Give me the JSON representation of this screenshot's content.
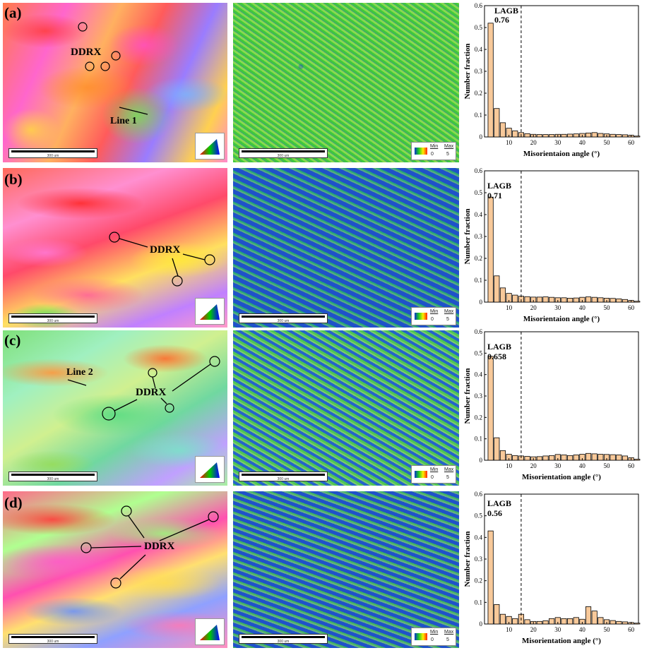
{
  "panels": [
    {
      "label": "(a)",
      "ipf_annotations": [
        "DDRX",
        "Line 1"
      ],
      "lagb_label": "LAGB",
      "lagb_value": "0.76",
      "xlabel": "Misorientaion angle (°)"
    },
    {
      "label": "(b)",
      "ipf_annotations": [
        "DDRX"
      ],
      "lagb_label": "LAGB",
      "lagb_value": "0.71",
      "xlabel": "Misorientaion angle (°)"
    },
    {
      "label": "(c)",
      "ipf_annotations": [
        "DDRX",
        "Line 2"
      ],
      "lagb_label": "LAGB",
      "lagb_value": "0.658",
      "xlabel": "Misorientation angle (°)"
    },
    {
      "label": "(d)",
      "ipf_annotations": [
        "DDRX"
      ],
      "lagb_label": "LAGB",
      "lagb_value": "0.56",
      "xlabel": "Misorientation angle (°)"
    }
  ],
  "scale_bar_text": "300 um",
  "kam_legend": {
    "min_label": "Min",
    "max_label": "Max",
    "min_value": "0",
    "max_value": "5"
  },
  "chart_data": [
    {
      "type": "bar",
      "ylabel": "Number fraction",
      "xlabel": "Misorientaion angle (°)",
      "ylim": [
        0,
        0.6
      ],
      "xlim": [
        0,
        63
      ],
      "xticks": [
        10,
        20,
        30,
        40,
        50,
        60
      ],
      "yticks": [
        0,
        0.1,
        0.2,
        0.3,
        0.4,
        0.5,
        0.6
      ],
      "threshold_line": 15,
      "x": [
        2.5,
        5,
        7.5,
        10,
        12.5,
        15,
        17.5,
        20,
        22.5,
        25,
        27.5,
        30,
        32.5,
        35,
        37.5,
        40,
        42.5,
        45,
        47.5,
        50,
        52.5,
        55,
        57.5,
        60,
        62.5
      ],
      "values": [
        0.52,
        0.13,
        0.065,
        0.04,
        0.028,
        0.02,
        0.015,
        0.012,
        0.011,
        0.011,
        0.011,
        0.012,
        0.012,
        0.013,
        0.014,
        0.016,
        0.018,
        0.02,
        0.016,
        0.014,
        0.012,
        0.011,
        0.01,
        0.008,
        0.004
      ]
    },
    {
      "type": "bar",
      "ylabel": "Number fraction",
      "xlabel": "Misorientaion angle (°)",
      "ylim": [
        0,
        0.6
      ],
      "xlim": [
        0,
        63
      ],
      "xticks": [
        10,
        20,
        30,
        40,
        50,
        60
      ],
      "yticks": [
        0,
        0.1,
        0.2,
        0.3,
        0.4,
        0.5,
        0.6
      ],
      "threshold_line": 15,
      "x": [
        2.5,
        5,
        7.5,
        10,
        12.5,
        15,
        17.5,
        20,
        22.5,
        25,
        27.5,
        30,
        32.5,
        35,
        37.5,
        40,
        42.5,
        45,
        47.5,
        50,
        52.5,
        55,
        57.5,
        60,
        62.5
      ],
      "values": [
        0.48,
        0.12,
        0.065,
        0.04,
        0.032,
        0.027,
        0.025,
        0.023,
        0.023,
        0.024,
        0.022,
        0.02,
        0.02,
        0.018,
        0.019,
        0.022,
        0.024,
        0.022,
        0.02,
        0.018,
        0.017,
        0.015,
        0.012,
        0.008,
        0.004
      ]
    },
    {
      "type": "bar",
      "ylabel": "Number fraction",
      "xlabel": "Misorientation angle (°)",
      "ylim": [
        0,
        0.6
      ],
      "xlim": [
        0,
        63
      ],
      "xticks": [
        10,
        20,
        30,
        40,
        50,
        60
      ],
      "yticks": [
        0,
        0.1,
        0.2,
        0.3,
        0.4,
        0.5,
        0.6
      ],
      "threshold_line": 15,
      "x": [
        2.5,
        5,
        7.5,
        10,
        12.5,
        15,
        17.5,
        20,
        22.5,
        25,
        27.5,
        30,
        32.5,
        35,
        37.5,
        40,
        42.5,
        45,
        47.5,
        50,
        52.5,
        55,
        57.5,
        60,
        62.5
      ],
      "values": [
        0.485,
        0.105,
        0.045,
        0.028,
        0.022,
        0.02,
        0.018,
        0.016,
        0.017,
        0.02,
        0.022,
        0.027,
        0.025,
        0.022,
        0.025,
        0.028,
        0.032,
        0.03,
        0.028,
        0.027,
        0.026,
        0.025,
        0.02,
        0.012,
        0.005
      ]
    },
    {
      "type": "bar",
      "ylabel": "Number fraction",
      "xlabel": "Misorientation angle (°)",
      "ylim": [
        0,
        0.6
      ],
      "xlim": [
        0,
        63
      ],
      "xticks": [
        10,
        20,
        30,
        40,
        50,
        60
      ],
      "yticks": [
        0,
        0.1,
        0.2,
        0.3,
        0.4,
        0.5,
        0.6
      ],
      "threshold_line": 15,
      "x": [
        2.5,
        5,
        7.5,
        10,
        12.5,
        15,
        17.5,
        20,
        22.5,
        25,
        27.5,
        30,
        32.5,
        35,
        37.5,
        40,
        42.5,
        45,
        47.5,
        50,
        52.5,
        55,
        57.5,
        60,
        62.5
      ],
      "values": [
        0.43,
        0.09,
        0.045,
        0.035,
        0.025,
        0.045,
        0.02,
        0.012,
        0.012,
        0.015,
        0.025,
        0.03,
        0.025,
        0.025,
        0.03,
        0.022,
        0.08,
        0.06,
        0.03,
        0.02,
        0.016,
        0.012,
        0.01,
        0.007,
        0.004
      ]
    }
  ]
}
